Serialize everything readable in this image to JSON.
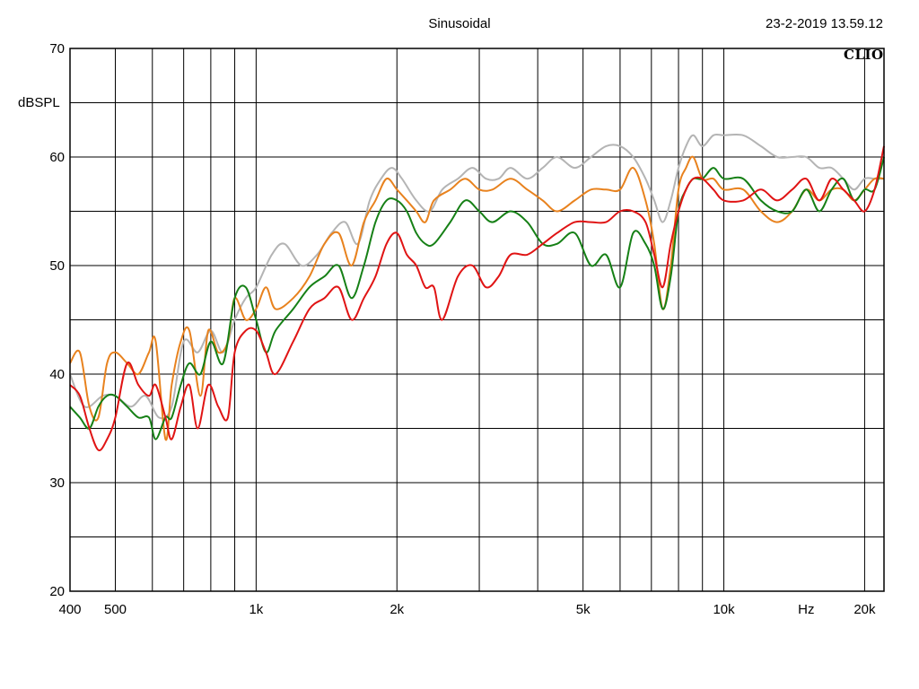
{
  "header": {
    "title": "Sinusoidal",
    "timestamp": "23-2-2019 13.59.12",
    "brand": "CLIO"
  },
  "chart_data": {
    "type": "line",
    "title": "Sinusoidal",
    "xlabel": "Hz",
    "ylabel": "dBSPL",
    "x_scale": "log",
    "xlim": [
      400,
      22000
    ],
    "ylim": [
      20,
      70
    ],
    "grid": true,
    "y_ticks": [
      20,
      30,
      40,
      50,
      60,
      70
    ],
    "x_ticks": [
      {
        "value": 400,
        "label": "400"
      },
      {
        "value": 500,
        "label": "500"
      },
      {
        "value": 1000,
        "label": "1k"
      },
      {
        "value": 2000,
        "label": "2k"
      },
      {
        "value": 5000,
        "label": "5k"
      },
      {
        "value": 10000,
        "label": "10k"
      },
      {
        "value": 20000,
        "label": "20k"
      }
    ],
    "x_unit_label": "Hz",
    "x_unit_position": 15000,
    "series": [
      {
        "color": "#b4b4b4",
        "points": [
          [
            400,
            40
          ],
          [
            430,
            37
          ],
          [
            470,
            38
          ],
          [
            500,
            38
          ],
          [
            540,
            37
          ],
          [
            580,
            38
          ],
          [
            620,
            36
          ],
          [
            660,
            37
          ],
          [
            700,
            43
          ],
          [
            750,
            42
          ],
          [
            800,
            44
          ],
          [
            850,
            42
          ],
          [
            900,
            45
          ],
          [
            950,
            47
          ],
          [
            1000,
            48
          ],
          [
            1080,
            51
          ],
          [
            1150,
            52
          ],
          [
            1250,
            50
          ],
          [
            1350,
            51
          ],
          [
            1450,
            53
          ],
          [
            1550,
            54
          ],
          [
            1650,
            52
          ],
          [
            1750,
            56
          ],
          [
            1850,
            58
          ],
          [
            1950,
            59
          ],
          [
            2050,
            58
          ],
          [
            2200,
            56
          ],
          [
            2350,
            55
          ],
          [
            2500,
            57
          ],
          [
            2700,
            58
          ],
          [
            2900,
            59
          ],
          [
            3100,
            58
          ],
          [
            3300,
            58
          ],
          [
            3500,
            59
          ],
          [
            3800,
            58
          ],
          [
            4100,
            59
          ],
          [
            4400,
            60
          ],
          [
            4800,
            59
          ],
          [
            5200,
            60
          ],
          [
            5600,
            61
          ],
          [
            6000,
            61
          ],
          [
            6400,
            60
          ],
          [
            6800,
            58
          ],
          [
            7100,
            56
          ],
          [
            7400,
            54
          ],
          [
            7700,
            56
          ],
          [
            8000,
            59
          ],
          [
            8300,
            61
          ],
          [
            8600,
            62
          ],
          [
            9000,
            61
          ],
          [
            9500,
            62
          ],
          [
            10000,
            62
          ],
          [
            11000,
            62
          ],
          [
            12000,
            61
          ],
          [
            13000,
            60
          ],
          [
            14000,
            60
          ],
          [
            15000,
            60
          ],
          [
            16000,
            59
          ],
          [
            17000,
            59
          ],
          [
            18000,
            58
          ],
          [
            19000,
            57
          ],
          [
            20000,
            58
          ],
          [
            21000,
            58
          ],
          [
            22000,
            58
          ]
        ]
      },
      {
        "color": "#e8821e",
        "points": [
          [
            400,
            41
          ],
          [
            420,
            42
          ],
          [
            440,
            37
          ],
          [
            460,
            36
          ],
          [
            480,
            41
          ],
          [
            500,
            42
          ],
          [
            530,
            41
          ],
          [
            560,
            40
          ],
          [
            590,
            42
          ],
          [
            610,
            43
          ],
          [
            640,
            34
          ],
          [
            660,
            39
          ],
          [
            690,
            43
          ],
          [
            720,
            44
          ],
          [
            760,
            38
          ],
          [
            790,
            44
          ],
          [
            830,
            42
          ],
          [
            870,
            43
          ],
          [
            900,
            47
          ],
          [
            950,
            45
          ],
          [
            1000,
            46
          ],
          [
            1050,
            48
          ],
          [
            1100,
            46
          ],
          [
            1200,
            47
          ],
          [
            1300,
            49
          ],
          [
            1400,
            52
          ],
          [
            1500,
            53
          ],
          [
            1600,
            50
          ],
          [
            1700,
            54
          ],
          [
            1800,
            56
          ],
          [
            1900,
            58
          ],
          [
            2000,
            57
          ],
          [
            2100,
            56
          ],
          [
            2200,
            55
          ],
          [
            2300,
            54
          ],
          [
            2400,
            56
          ],
          [
            2600,
            57
          ],
          [
            2800,
            58
          ],
          [
            3000,
            57
          ],
          [
            3200,
            57
          ],
          [
            3500,
            58
          ],
          [
            3800,
            57
          ],
          [
            4100,
            56
          ],
          [
            4400,
            55
          ],
          [
            4800,
            56
          ],
          [
            5200,
            57
          ],
          [
            5600,
            57
          ],
          [
            6000,
            57
          ],
          [
            6400,
            59
          ],
          [
            6800,
            56
          ],
          [
            7100,
            52
          ],
          [
            7400,
            46
          ],
          [
            7700,
            50
          ],
          [
            8000,
            57
          ],
          [
            8300,
            59
          ],
          [
            8600,
            60
          ],
          [
            9000,
            58
          ],
          [
            9500,
            58
          ],
          [
            10000,
            57
          ],
          [
            11000,
            57
          ],
          [
            12000,
            55
          ],
          [
            13000,
            54
          ],
          [
            14000,
            55
          ],
          [
            15000,
            57
          ],
          [
            16000,
            56
          ],
          [
            17000,
            57
          ],
          [
            18000,
            57
          ],
          [
            19000,
            56
          ],
          [
            20000,
            57
          ],
          [
            21000,
            58
          ],
          [
            22000,
            58
          ]
        ]
      },
      {
        "color": "#168016",
        "points": [
          [
            400,
            37
          ],
          [
            420,
            36
          ],
          [
            440,
            35
          ],
          [
            460,
            37
          ],
          [
            480,
            38
          ],
          [
            500,
            38
          ],
          [
            530,
            37
          ],
          [
            560,
            36
          ],
          [
            590,
            36
          ],
          [
            610,
            34
          ],
          [
            640,
            36
          ],
          [
            660,
            36
          ],
          [
            690,
            39
          ],
          [
            720,
            41
          ],
          [
            760,
            40
          ],
          [
            800,
            43
          ],
          [
            850,
            41
          ],
          [
            900,
            47
          ],
          [
            950,
            48
          ],
          [
            1000,
            45
          ],
          [
            1050,
            42
          ],
          [
            1100,
            44
          ],
          [
            1200,
            46
          ],
          [
            1300,
            48
          ],
          [
            1400,
            49
          ],
          [
            1500,
            50
          ],
          [
            1600,
            47
          ],
          [
            1700,
            50
          ],
          [
            1800,
            54
          ],
          [
            1900,
            56
          ],
          [
            2000,
            56
          ],
          [
            2100,
            55
          ],
          [
            2200,
            53
          ],
          [
            2300,
            52
          ],
          [
            2400,
            52
          ],
          [
            2600,
            54
          ],
          [
            2800,
            56
          ],
          [
            3000,
            55
          ],
          [
            3200,
            54
          ],
          [
            3500,
            55
          ],
          [
            3800,
            54
          ],
          [
            4100,
            52
          ],
          [
            4400,
            52
          ],
          [
            4800,
            53
          ],
          [
            5200,
            50
          ],
          [
            5600,
            51
          ],
          [
            6000,
            48
          ],
          [
            6400,
            53
          ],
          [
            6800,
            52
          ],
          [
            7100,
            50
          ],
          [
            7400,
            46
          ],
          [
            7700,
            49
          ],
          [
            8000,
            55
          ],
          [
            8300,
            57
          ],
          [
            8600,
            58
          ],
          [
            9000,
            58
          ],
          [
            9500,
            59
          ],
          [
            10000,
            58
          ],
          [
            11000,
            58
          ],
          [
            12000,
            56
          ],
          [
            13000,
            55
          ],
          [
            14000,
            55
          ],
          [
            15000,
            57
          ],
          [
            16000,
            55
          ],
          [
            17000,
            57
          ],
          [
            18000,
            58
          ],
          [
            19000,
            56
          ],
          [
            20000,
            57
          ],
          [
            21000,
            57
          ],
          [
            22000,
            60
          ]
        ]
      },
      {
        "color": "#e01414",
        "points": [
          [
            400,
            39
          ],
          [
            420,
            38
          ],
          [
            440,
            35
          ],
          [
            460,
            33
          ],
          [
            480,
            34
          ],
          [
            500,
            36
          ],
          [
            530,
            41
          ],
          [
            560,
            39
          ],
          [
            590,
            38
          ],
          [
            610,
            39
          ],
          [
            640,
            36
          ],
          [
            660,
            34
          ],
          [
            690,
            37
          ],
          [
            720,
            39
          ],
          [
            750,
            35
          ],
          [
            790,
            39
          ],
          [
            830,
            37
          ],
          [
            870,
            36
          ],
          [
            900,
            42
          ],
          [
            950,
            44
          ],
          [
            1000,
            44
          ],
          [
            1050,
            42
          ],
          [
            1100,
            40
          ],
          [
            1200,
            43
          ],
          [
            1300,
            46
          ],
          [
            1400,
            47
          ],
          [
            1500,
            48
          ],
          [
            1600,
            45
          ],
          [
            1700,
            47
          ],
          [
            1800,
            49
          ],
          [
            1900,
            52
          ],
          [
            2000,
            53
          ],
          [
            2100,
            51
          ],
          [
            2200,
            50
          ],
          [
            2300,
            48
          ],
          [
            2400,
            48
          ],
          [
            2500,
            45
          ],
          [
            2700,
            49
          ],
          [
            2900,
            50
          ],
          [
            3100,
            48
          ],
          [
            3300,
            49
          ],
          [
            3500,
            51
          ],
          [
            3800,
            51
          ],
          [
            4100,
            52
          ],
          [
            4400,
            53
          ],
          [
            4800,
            54
          ],
          [
            5200,
            54
          ],
          [
            5600,
            54
          ],
          [
            6000,
            55
          ],
          [
            6400,
            55
          ],
          [
            6800,
            54
          ],
          [
            7100,
            51
          ],
          [
            7400,
            48
          ],
          [
            7700,
            52
          ],
          [
            8000,
            55
          ],
          [
            8300,
            57
          ],
          [
            8600,
            58
          ],
          [
            9000,
            58
          ],
          [
            9500,
            57
          ],
          [
            10000,
            56
          ],
          [
            11000,
            56
          ],
          [
            12000,
            57
          ],
          [
            13000,
            56
          ],
          [
            14000,
            57
          ],
          [
            15000,
            58
          ],
          [
            16000,
            56
          ],
          [
            17000,
            58
          ],
          [
            18000,
            57
          ],
          [
            19000,
            56
          ],
          [
            20000,
            55
          ],
          [
            21000,
            57
          ],
          [
            22000,
            61
          ]
        ]
      }
    ]
  }
}
